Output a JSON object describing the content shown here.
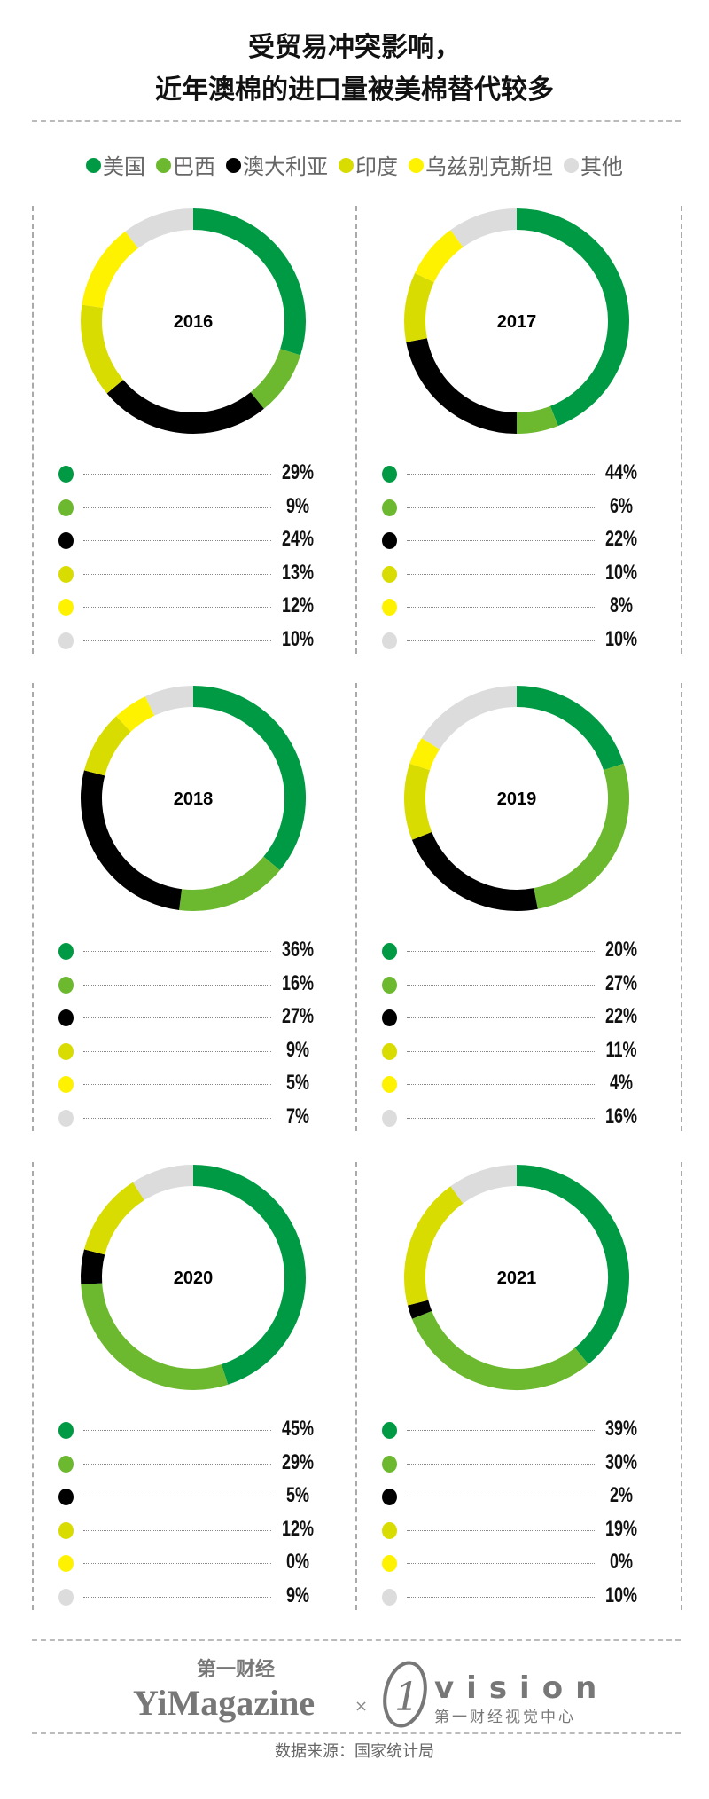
{
  "title": {
    "line1": "受贸易冲突影响，",
    "line2": "近年澳棉的进口量被美棉替代较多"
  },
  "chart_data": {
    "type": "pie",
    "variant": "donut",
    "legend_position": "top",
    "categories": [
      "美国",
      "巴西",
      "澳大利亚",
      "印度",
      "乌兹别克斯坦",
      "其他"
    ],
    "colors": [
      "#009a44",
      "#6cb92f",
      "#000000",
      "#d9dc00",
      "#fff200",
      "#dcdcdc"
    ],
    "unit": "%",
    "charts": [
      {
        "title": "2016",
        "values": [
          29,
          9,
          24,
          13,
          12,
          10
        ]
      },
      {
        "title": "2017",
        "values": [
          44,
          6,
          22,
          10,
          8,
          10
        ]
      },
      {
        "title": "2018",
        "values": [
          36,
          16,
          27,
          9,
          5,
          7
        ]
      },
      {
        "title": "2019",
        "values": [
          20,
          27,
          22,
          11,
          4,
          16
        ]
      },
      {
        "title": "2020",
        "values": [
          45,
          29,
          5,
          12,
          0,
          9
        ]
      },
      {
        "title": "2021",
        "values": [
          39,
          30,
          2,
          19,
          0,
          10
        ]
      }
    ]
  },
  "footer": {
    "logo_cn": "第一财经",
    "logo_en": "YiMagazine",
    "separator": "×",
    "vision_mark": "1",
    "vision": "vision",
    "vision_cn": "第一财经视觉中心",
    "source": "数据来源：国家统计局"
  }
}
